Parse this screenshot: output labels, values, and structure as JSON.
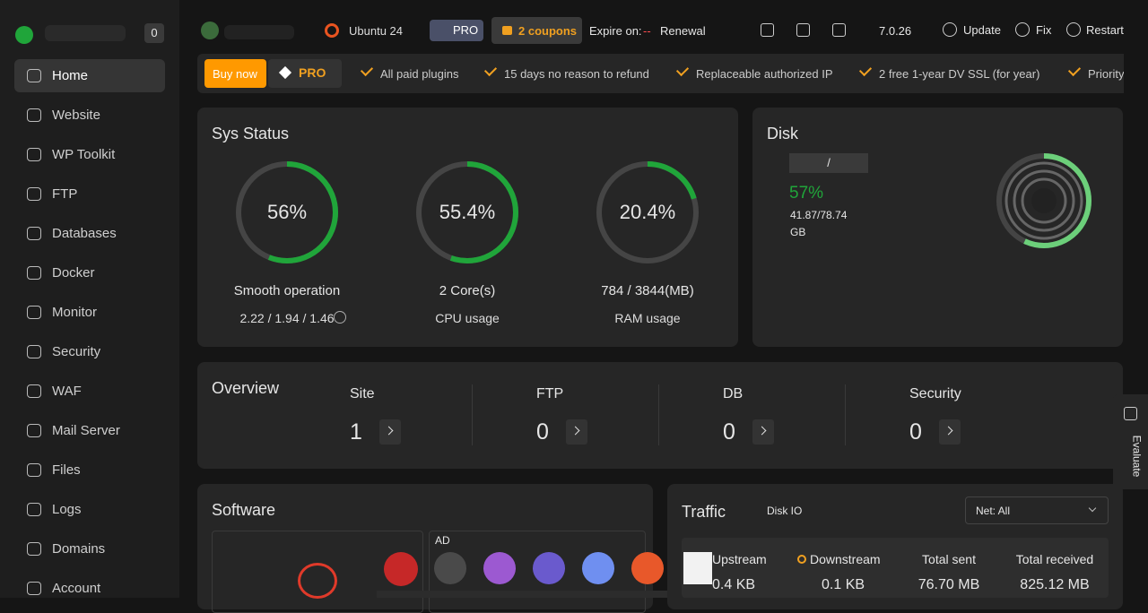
{
  "sidebar": {
    "badge": "0",
    "menu": [
      "Home",
      "Website",
      "WP Toolkit",
      "FTP",
      "Databases",
      "Docker",
      "Monitor",
      "Security",
      "WAF",
      "Mail Server",
      "Files",
      "Logs",
      "Domains",
      "Account"
    ]
  },
  "topbar": {
    "os": "Ubuntu 24",
    "pro": "PRO",
    "coupons": "2 coupons",
    "expire_label": "Expire on:",
    "expire_value": "--",
    "renewal": "Renewal",
    "version": "7.0.26",
    "actions": [
      "Update",
      "Fix",
      "Restart"
    ]
  },
  "promo": {
    "buy": "Buy now",
    "pro": "PRO",
    "features": [
      "All paid plugins",
      "15 days no reason to refund",
      "Replaceable authorized IP",
      "2 free 1-year DV SSL (for year)",
      "Priority"
    ]
  },
  "sys_status": {
    "title": "Sys Status",
    "gauges": [
      {
        "value": 56,
        "label": "56%",
        "caption": "Smooth operation",
        "detail": "2.22 / 1.94 / 1.46"
      },
      {
        "value": 55.4,
        "label": "55.4%",
        "caption": "2 Core(s)",
        "detail": "CPU usage"
      },
      {
        "value": 20.4,
        "label": "20.4%",
        "caption": "784 / 3844(MB)",
        "detail": "RAM usage"
      }
    ]
  },
  "disk": {
    "title": "Disk",
    "mount": "/",
    "value": 57,
    "label": "57%",
    "usage": "41.87/78.74",
    "unit": "GB"
  },
  "overview": {
    "title": "Overview",
    "items": [
      {
        "name": "Site",
        "count": "1"
      },
      {
        "name": "FTP",
        "count": "0"
      },
      {
        "name": "DB",
        "count": "0"
      },
      {
        "name": "Security",
        "count": "0"
      }
    ]
  },
  "software": {
    "title": "Software",
    "ad": "AD"
  },
  "traffic": {
    "title": "Traffic",
    "tab": "Disk IO",
    "select": "Net: All",
    "columns": [
      {
        "name": "Upstream",
        "value": "0.4 KB"
      },
      {
        "name": "Downstream",
        "value": "0.1 KB"
      },
      {
        "name": "Total sent",
        "value": "76.70 MB"
      },
      {
        "name": "Total received",
        "value": "825.12 MB"
      }
    ]
  },
  "evaluate": "Evaluate"
}
